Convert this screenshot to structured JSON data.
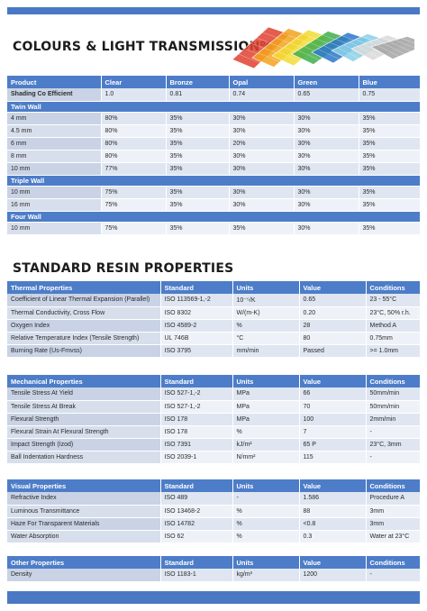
{
  "section1": {
    "title": "COLOURS & LIGHT TRANSMISSION%",
    "headers": [
      "Product",
      "Clear",
      "Bronze",
      "Opal",
      "Green",
      "Blue"
    ],
    "shading": [
      "Shading Co Efficient",
      "1.0",
      "0.81",
      "0.74",
      "0.65",
      "0.75"
    ],
    "groups": [
      {
        "name": "Twin Wall",
        "rows": [
          [
            "4 mm",
            "80%",
            "35%",
            "30%",
            "30%",
            "35%"
          ],
          [
            "4.5 mm",
            "80%",
            "35%",
            "30%",
            "30%",
            "35%"
          ],
          [
            "6 mm",
            "80%",
            "35%",
            "20%",
            "30%",
            "35%"
          ],
          [
            "8 mm",
            "80%",
            "35%",
            "30%",
            "30%",
            "35%"
          ],
          [
            "10 mm",
            "77%",
            "35%",
            "30%",
            "30%",
            "35%"
          ]
        ]
      },
      {
        "name": "Triple Wall",
        "rows": [
          [
            "10 mm",
            "75%",
            "35%",
            "30%",
            "30%",
            "35%"
          ],
          [
            "16 mm",
            "75%",
            "35%",
            "30%",
            "30%",
            "35%"
          ]
        ]
      },
      {
        "name": "Four Wall",
        "rows": [
          [
            "10 mm",
            "75%",
            "35%",
            "35%",
            "30%",
            "35%"
          ]
        ]
      }
    ]
  },
  "section2": {
    "title": "STANDARD RESIN PROPERTIES",
    "tables": [
      {
        "headers": [
          "Thermal Properties",
          "Standard",
          "Units",
          "Value",
          "Conditions"
        ],
        "rows": [
          [
            "Coefficient of Linear Thermal Expansion (Parallel)",
            "ISO 113569-1,-2",
            "10⁻⁵/K",
            "0.65",
            "23 - 55°C"
          ],
          [
            "Thermal Conductivity, Cross Flow",
            "ISO 8302",
            "W/(m-K)",
            "0.20",
            "23°C, 50% r.h."
          ],
          [
            "Oxygen Index",
            "ISO 4589-2",
            "%",
            "28",
            "Method A"
          ],
          [
            "Relative Temperature Index (Tensile Strength)",
            "UL 746B",
            "°C",
            "80",
            "0.75mm"
          ],
          [
            "Burning Rate (Us-Fmvss)",
            "ISO 3795",
            "mm/min",
            "Passed",
            ">= 1.0mm"
          ]
        ]
      },
      {
        "headers": [
          "Mechanical Properties",
          "Standard",
          "Units",
          "Value",
          "Conditions"
        ],
        "rows": [
          [
            "Tensile Stress At Yield",
            "ISO 527-1,-2",
            "MPa",
            "66",
            "50mm/min"
          ],
          [
            "Tensile Stress At Break",
            "ISO 527-1,-2",
            "MPa",
            "70",
            "50mm/min"
          ],
          [
            "Flexural Strength",
            "ISO 178",
            "MPa",
            "100",
            "2mm/min"
          ],
          [
            "Flexural Strain At Flexural Strength",
            "ISO 178",
            "%",
            "7",
            "-"
          ],
          [
            "Impact Strength (Izod)",
            "ISO 7391",
            "kJ/m²",
            "65 P",
            "23°C, 3mm"
          ],
          [
            "Ball Indentation Hardness",
            "ISO 2039-1",
            "N/mm²",
            "115",
            "-"
          ]
        ]
      },
      {
        "headers": [
          "Visual Properties",
          "Standard",
          "Units",
          "Value",
          "Conditions"
        ],
        "rows": [
          [
            "Refractive Index",
            "ISO 489",
            "-",
            "1.586",
            "Procedure A"
          ],
          [
            "Luminous Transmittance",
            "ISO 13468-2",
            "%",
            "88",
            "3mm"
          ],
          [
            "Haze For Transparent Materials",
            "ISO 14782",
            "%",
            "<0.8",
            "3mm"
          ],
          [
            "Water Absorption",
            "ISO 62",
            "%",
            "0.3",
            "Water at 23°C"
          ]
        ]
      },
      {
        "headers": [
          "Other Properties",
          "Standard",
          "Units",
          "Value",
          "Conditions"
        ],
        "rows": [
          [
            "Density",
            "ISO 1183-1",
            "kg/m³",
            "1200",
            "-"
          ]
        ]
      }
    ]
  },
  "image": {
    "icon": "polycarbonate-sheets-illustration",
    "colors": [
      "#e0412f",
      "#f3a31c",
      "#f1dc33",
      "#3fae4b",
      "#2c77c9",
      "#8ad0e8",
      "#d9d9d9",
      "#a3a3a3"
    ]
  },
  "accent": "#4d7dc8"
}
